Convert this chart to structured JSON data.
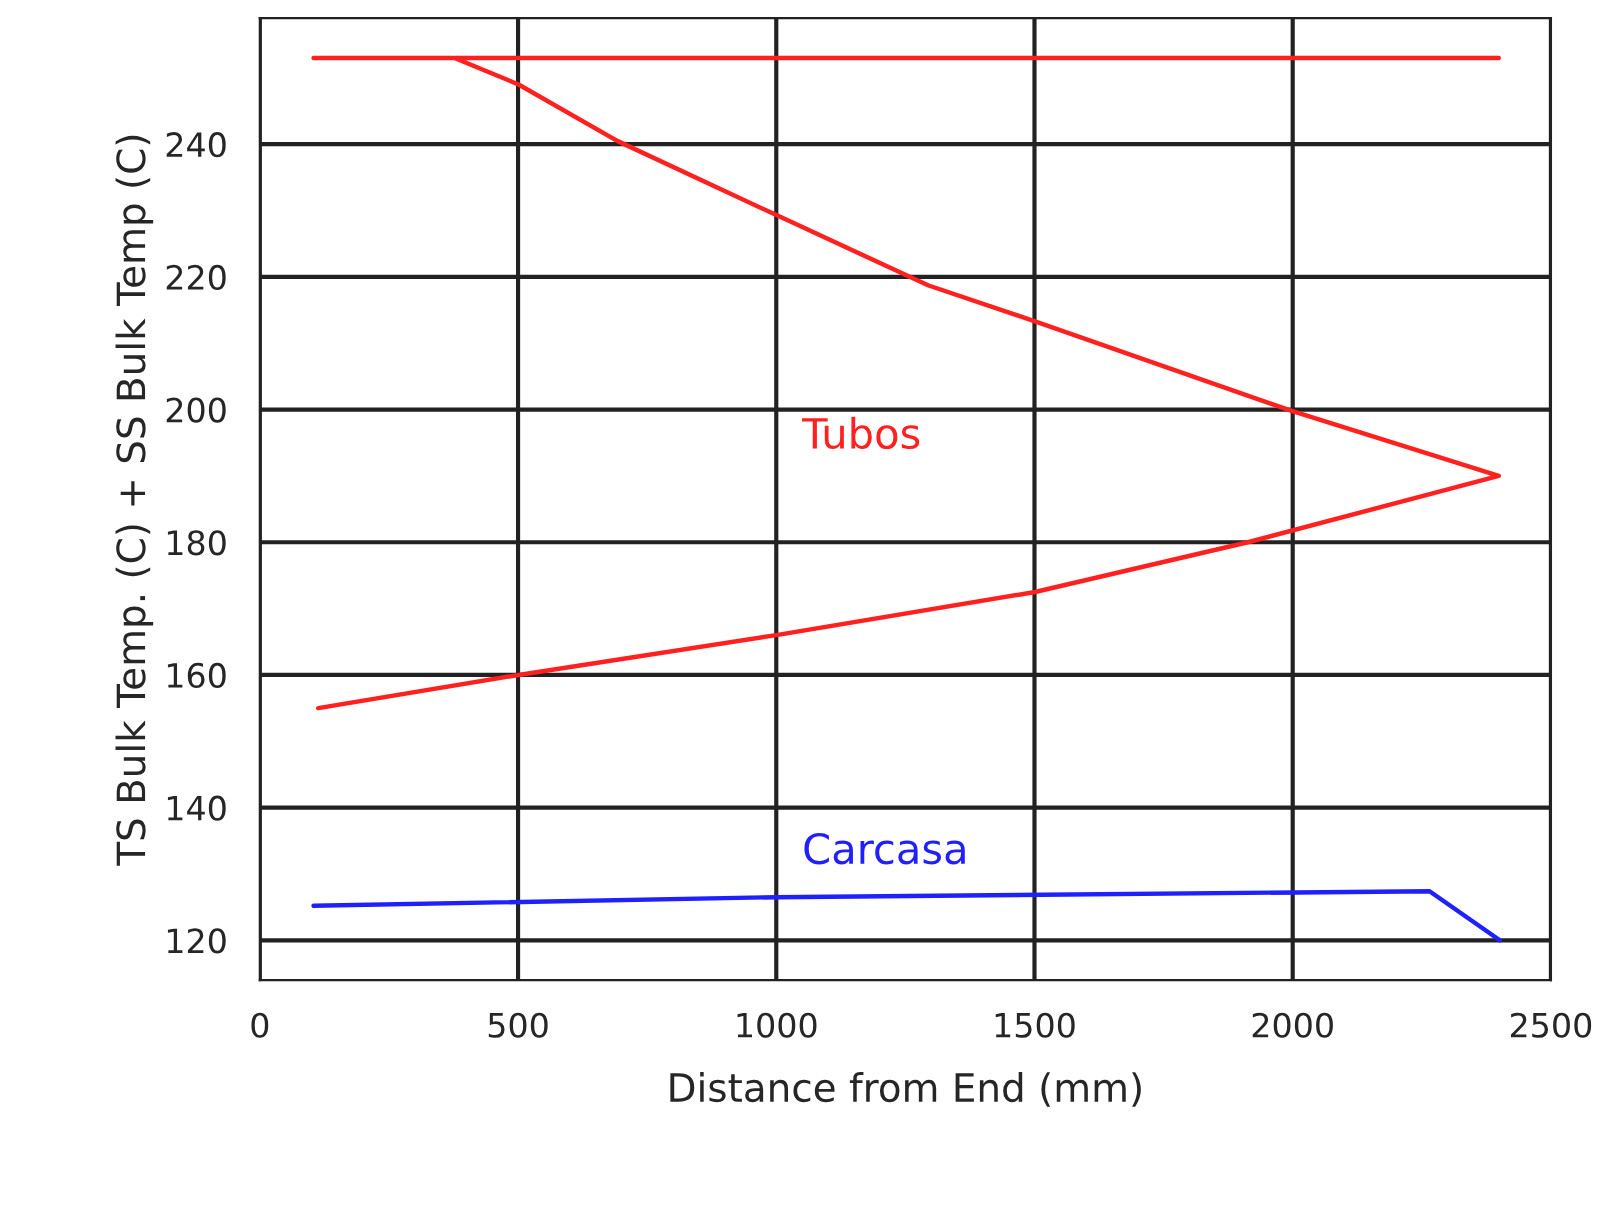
{
  "chart_data": {
    "type": "line",
    "xlabel": "Distance from End (mm)",
    "ylabel": "TS Bulk Temp. (C) + SS Bulk Temp (C)",
    "series": [
      {
        "name": "Tubos",
        "color": "#ff2020",
        "x": [
          2399,
          104,
          377,
          501,
          692,
          995,
          1295,
          1501,
          1998,
          2399,
          1913,
          1501,
          1000,
          501,
          113
        ],
        "values": [
          253,
          253,
          253,
          249,
          240.5,
          229.5,
          218.7,
          213.3,
          199.8,
          190,
          180,
          172.5,
          166,
          160,
          155
        ]
      },
      {
        "name": "Carcasa",
        "color": "#2020ff",
        "x": [
          104,
          1000,
          2265,
          2401
        ],
        "values": [
          125.2,
          126.5,
          127.4,
          120
        ]
      }
    ],
    "xlim": [
      0,
      2500
    ],
    "xticks": [
      0,
      500,
      1000,
      1500,
      2000,
      2500
    ],
    "ylim": [
      114,
      259
    ],
    "yticks": [
      120,
      140,
      160,
      180,
      200,
      220,
      240
    ],
    "grid": true,
    "marker": "none",
    "line_style": "solid"
  }
}
